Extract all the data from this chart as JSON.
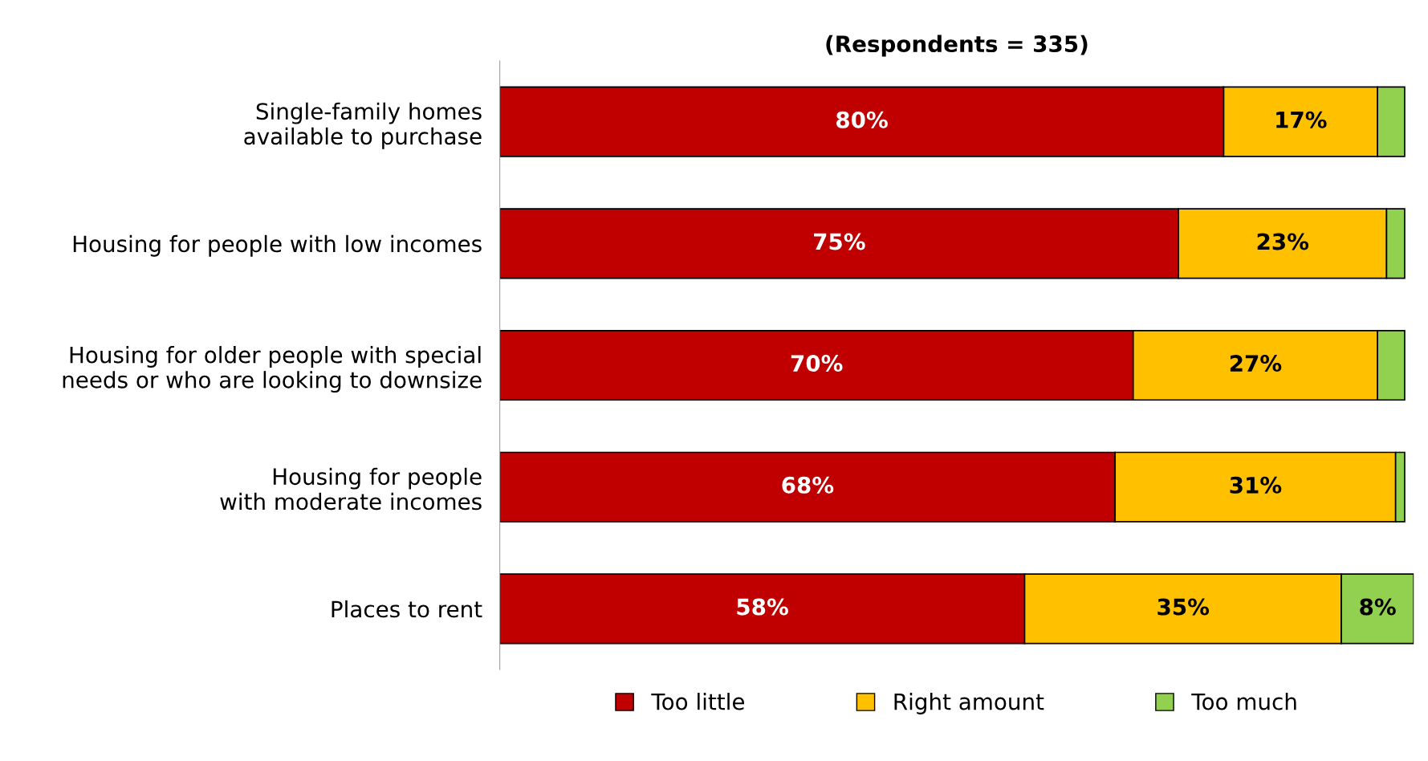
{
  "chart_data": {
    "type": "bar",
    "orientation": "horizontal",
    "stacked": true,
    "title": "(Respondents = 335)",
    "categories": [
      "Single-family homes\navailable to purchase",
      "Housing for people with low incomes",
      "Housing for older people with special\nneeds or who are looking to downsize",
      "Housing for people\nwith moderate incomes",
      "Places to rent"
    ],
    "series": [
      {
        "name": "Too little",
        "color": "#c00000",
        "values": [
          80,
          75,
          70,
          68,
          58
        ],
        "value_labels": [
          "80%",
          "75%",
          "70%",
          "68%",
          "58%"
        ]
      },
      {
        "name": "Right amount",
        "color": "#ffc000",
        "values": [
          17,
          23,
          27,
          31,
          35
        ],
        "value_labels": [
          "17%",
          "23%",
          "27%",
          "31%",
          "35%"
        ]
      },
      {
        "name": "Too much",
        "color": "#92d050",
        "values": [
          3,
          2,
          3,
          1,
          8
        ],
        "value_labels": [
          null,
          null,
          null,
          null,
          "8%"
        ]
      }
    ],
    "xlim": [
      0,
      101
    ],
    "tick_labels": "y",
    "grid": false,
    "legend": "bottom"
  }
}
